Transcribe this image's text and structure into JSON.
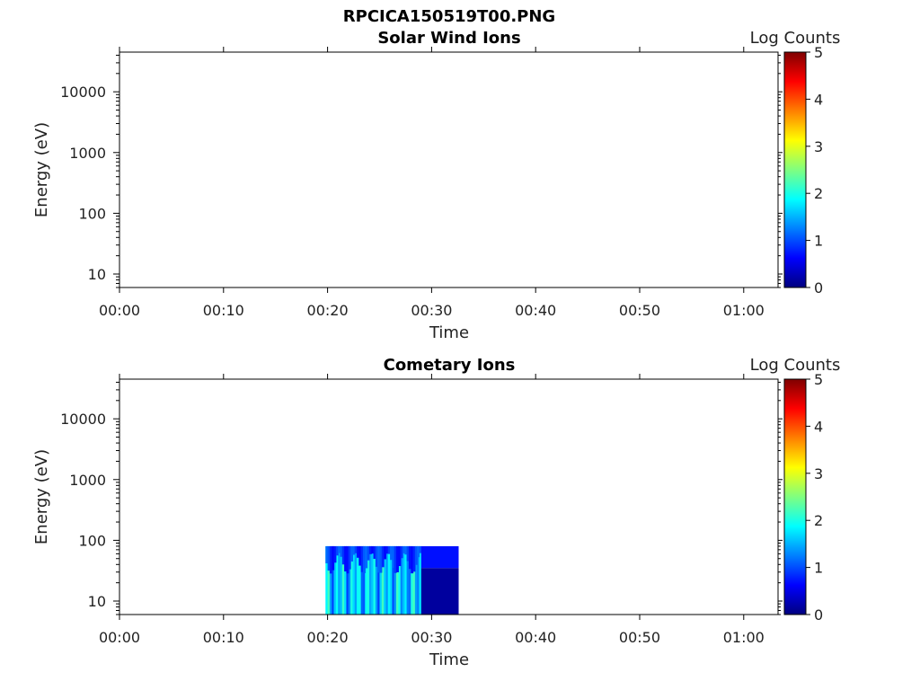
{
  "figure": {
    "title": "RPCICA150519T00.PNG"
  },
  "chart_data": [
    {
      "type": "heatmap",
      "title": "Solar Wind Ions",
      "xlabel": "Time",
      "ylabel": "Energy (eV)",
      "x_ticks": [
        "00:00",
        "00:10",
        "00:20",
        "00:30",
        "00:40",
        "00:50",
        "01:00"
      ],
      "x_range_minutes": [
        0,
        63.3
      ],
      "y_scale": "log",
      "y_ticks": [
        "10",
        "100",
        "1000",
        "10000"
      ],
      "y_range": [
        6,
        45000
      ],
      "colorbar": {
        "label": "Log Counts",
        "ticks": [
          "0",
          "1",
          "2",
          "3",
          "4",
          "5"
        ],
        "range": [
          0,
          5
        ],
        "colormap": "jet"
      },
      "blocks": []
    },
    {
      "type": "heatmap",
      "title": "Cometary Ions",
      "xlabel": "Time",
      "ylabel": "Energy (eV)",
      "x_ticks": [
        "00:00",
        "00:10",
        "00:20",
        "00:30",
        "00:40",
        "00:50",
        "01:00"
      ],
      "x_range_minutes": [
        0,
        63.3
      ],
      "y_scale": "log",
      "y_ticks": [
        "10",
        "100",
        "1000",
        "10000"
      ],
      "y_range": [
        6,
        45000
      ],
      "colorbar": {
        "label": "Log Counts",
        "ticks": [
          "0",
          "1",
          "2",
          "3",
          "4",
          "5"
        ],
        "range": [
          0,
          5
        ],
        "colormap": "jet"
      },
      "blocks": [
        {
          "t_start": 19.8,
          "t_end": 29.0,
          "e_min": 6,
          "e_max": 80,
          "log_counts": 1.6,
          "pattern": "striped"
        },
        {
          "t_start": 29.0,
          "t_end": 32.6,
          "e_min": 6,
          "e_max": 35,
          "log_counts": 0.15
        },
        {
          "t_start": 29.0,
          "t_end": 32.6,
          "e_min": 35,
          "e_max": 80,
          "log_counts": 0.7
        }
      ]
    }
  ]
}
